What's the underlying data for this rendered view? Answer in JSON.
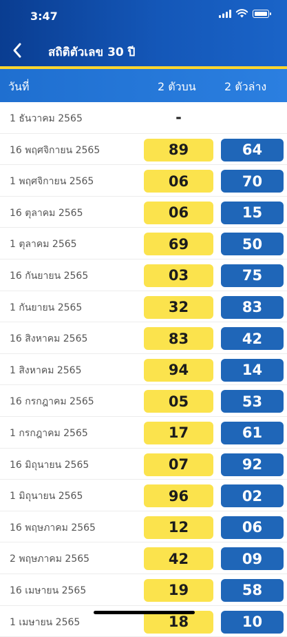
{
  "status_bar": {
    "time": "3:47",
    "icons": [
      "signal-icon",
      "wifi-icon",
      "battery-icon"
    ]
  },
  "nav": {
    "back_icon": "chevron-left-icon",
    "title": "สถิติตัวเลข 30 ปี"
  },
  "table": {
    "headers": {
      "date": "วันที่",
      "top": "2 ตัวบน",
      "bottom": "2 ตัวล่าง"
    },
    "rows": [
      {
        "date": "1 ธันวาคม 2565",
        "top": "-",
        "bottom": ""
      },
      {
        "date": "16 พฤศจิกายน 2565",
        "top": "89",
        "bottom": "64"
      },
      {
        "date": "1 พฤศจิกายน 2565",
        "top": "06",
        "bottom": "70"
      },
      {
        "date": "16 ตุลาคม 2565",
        "top": "06",
        "bottom": "15"
      },
      {
        "date": "1 ตุลาคม 2565",
        "top": "69",
        "bottom": "50"
      },
      {
        "date": "16 กันยายน 2565",
        "top": "03",
        "bottom": "75"
      },
      {
        "date": "1 กันยายน 2565",
        "top": "32",
        "bottom": "83"
      },
      {
        "date": "16 สิงหาคม 2565",
        "top": "83",
        "bottom": "42"
      },
      {
        "date": "1 สิงหาคม 2565",
        "top": "94",
        "bottom": "14"
      },
      {
        "date": "16 กรกฎาคม 2565",
        "top": "05",
        "bottom": "53"
      },
      {
        "date": "1 กรกฎาคม 2565",
        "top": "17",
        "bottom": "61"
      },
      {
        "date": "16 มิถุนายน 2565",
        "top": "07",
        "bottom": "92"
      },
      {
        "date": "1 มิถุนายน 2565",
        "top": "96",
        "bottom": "02"
      },
      {
        "date": "16 พฤษภาคม 2565",
        "top": "12",
        "bottom": "06"
      },
      {
        "date": "2 พฤษภาคม 2565",
        "top": "42",
        "bottom": "09"
      },
      {
        "date": "16 เมษายน 2565",
        "top": "19",
        "bottom": "58"
      },
      {
        "date": "1 เมษายน 2565",
        "top": "18",
        "bottom": "10"
      }
    ]
  },
  "colors": {
    "header_blue": "#0a3d91",
    "accent_yellow": "#ffd62e",
    "top_pill": "#fbe34d",
    "bottom_pill": "#1f66b8"
  }
}
